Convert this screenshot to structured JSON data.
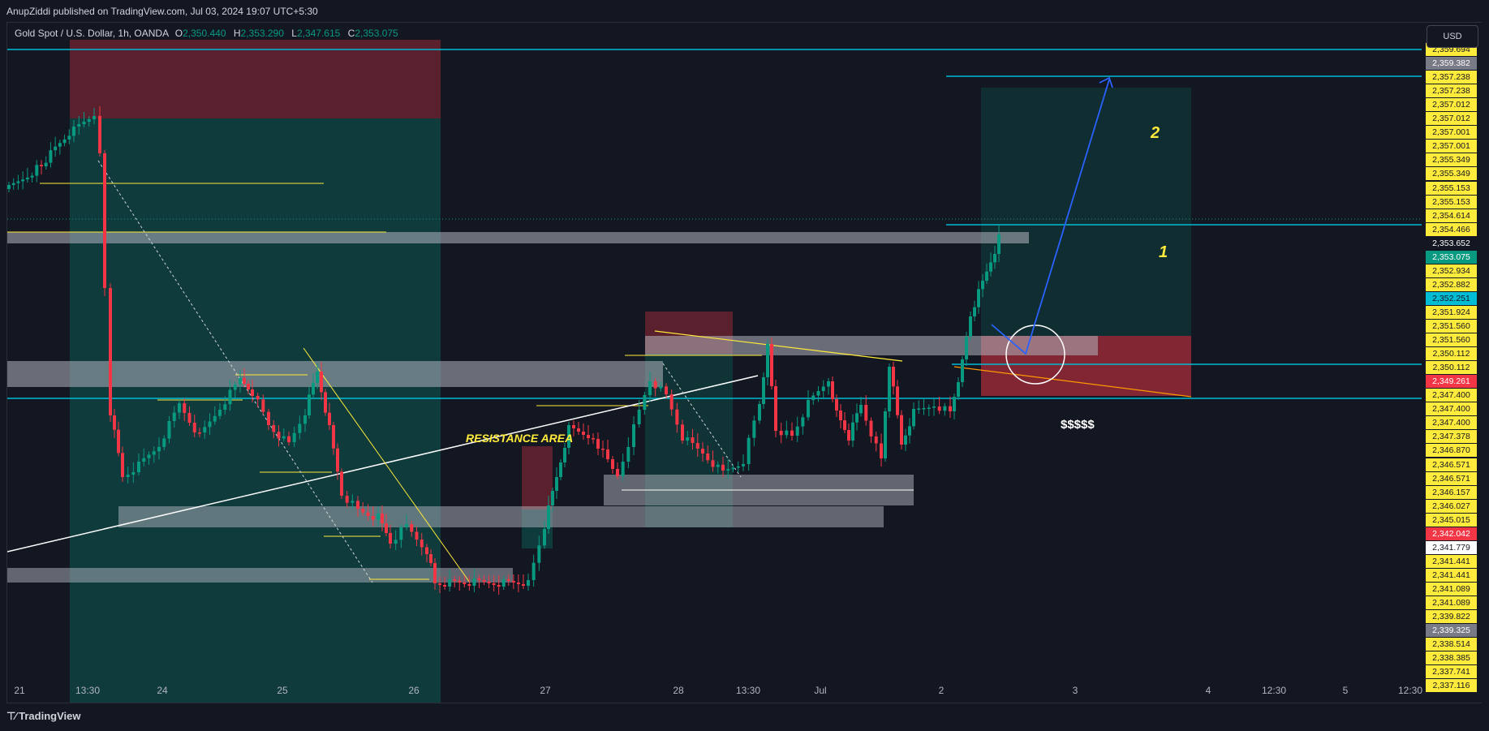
{
  "header": {
    "text": "AnupZiddi published on TradingView.com, Jul 03, 2024 19:07 UTC+5:30"
  },
  "legend": {
    "symbol": "Gold Spot / U.S. Dollar, 1h, OANDA",
    "o_label": "O",
    "o_value": "2,350.440",
    "h_label": "H",
    "h_value": "2,353.290",
    "l_label": "L",
    "l_value": "2,347.615",
    "c_label": "C",
    "c_value": "2,353.075"
  },
  "currency": "USD",
  "annotations": {
    "resistance": "RESISTANCE AREA",
    "liquidity": "$$$$$",
    "wave1": "1",
    "wave2": "2"
  },
  "footer": {
    "brand": "TradingView"
  },
  "time_axis": [
    {
      "label": "21"
    },
    {
      "label": "13:30"
    },
    {
      "label": "24"
    },
    {
      "label": "25"
    },
    {
      "label": "26"
    },
    {
      "label": "27"
    },
    {
      "label": "28"
    },
    {
      "label": "13:30"
    },
    {
      "label": "Jul"
    },
    {
      "label": "2"
    },
    {
      "label": "3"
    },
    {
      "label": "4"
    },
    {
      "label": "12:30"
    },
    {
      "label": "5"
    },
    {
      "label": "12:30"
    }
  ],
  "price_labels": [
    {
      "text": "2,359.694",
      "bg": "#ffeb3b",
      "fg": "#131722"
    },
    {
      "text": "2,359.382",
      "bg": "#787b86",
      "fg": "#ffffff"
    },
    {
      "text": "2,357.238",
      "bg": "#ffeb3b",
      "fg": "#131722"
    },
    {
      "text": "2,357.238",
      "bg": "#ffeb3b",
      "fg": "#131722"
    },
    {
      "text": "2,357.012",
      "bg": "#ffeb3b",
      "fg": "#131722"
    },
    {
      "text": "2,357.012",
      "bg": "#ffeb3b",
      "fg": "#131722"
    },
    {
      "text": "2,357.001",
      "bg": "#ffeb3b",
      "fg": "#131722"
    },
    {
      "text": "2,357.001",
      "bg": "#ffeb3b",
      "fg": "#131722"
    },
    {
      "text": "2,355.349",
      "bg": "#ffeb3b",
      "fg": "#131722"
    },
    {
      "text": "2,355.349",
      "bg": "#ffeb3b",
      "fg": "#131722"
    },
    {
      "text": "2,355.153",
      "bg": "#ffeb3b",
      "fg": "#131722"
    },
    {
      "text": "2,355.153",
      "bg": "#ffeb3b",
      "fg": "#131722"
    },
    {
      "text": "2,354.614",
      "bg": "#ffeb3b",
      "fg": "#131722"
    },
    {
      "text": "2,354.466",
      "bg": "#ffeb3b",
      "fg": "#131722"
    },
    {
      "text": "2,353.652",
      "bg": "#131722",
      "fg": "#ffffff"
    },
    {
      "text": "2,353.075",
      "bg": "#089981",
      "fg": "#ffffff"
    },
    {
      "text": "2,352.934",
      "bg": "#ffeb3b",
      "fg": "#131722"
    },
    {
      "text": "2,352.882",
      "bg": "#ffeb3b",
      "fg": "#131722"
    },
    {
      "text": "2,352.251",
      "bg": "#00bcd4",
      "fg": "#131722"
    },
    {
      "text": "2,351.924",
      "bg": "#ffeb3b",
      "fg": "#131722"
    },
    {
      "text": "2,351.560",
      "bg": "#ffeb3b",
      "fg": "#131722"
    },
    {
      "text": "2,351.560",
      "bg": "#ffeb3b",
      "fg": "#131722"
    },
    {
      "text": "2,350.112",
      "bg": "#ffeb3b",
      "fg": "#131722"
    },
    {
      "text": "2,350.112",
      "bg": "#ffeb3b",
      "fg": "#131722"
    },
    {
      "text": "2,349.261",
      "bg": "#f23645",
      "fg": "#ffffff"
    },
    {
      "text": "2,347.400",
      "bg": "#ffeb3b",
      "fg": "#131722"
    },
    {
      "text": "2,347.400",
      "bg": "#ffeb3b",
      "fg": "#131722"
    },
    {
      "text": "2,347.400",
      "bg": "#ffeb3b",
      "fg": "#131722"
    },
    {
      "text": "2,347.378",
      "bg": "#ffeb3b",
      "fg": "#131722"
    },
    {
      "text": "2,346.870",
      "bg": "#ffeb3b",
      "fg": "#131722"
    },
    {
      "text": "2,346.571",
      "bg": "#ffeb3b",
      "fg": "#131722"
    },
    {
      "text": "2,346.571",
      "bg": "#ffeb3b",
      "fg": "#131722"
    },
    {
      "text": "2,346.157",
      "bg": "#ffeb3b",
      "fg": "#131722"
    },
    {
      "text": "2,346.027",
      "bg": "#ffeb3b",
      "fg": "#131722"
    },
    {
      "text": "2,345.015",
      "bg": "#ffeb3b",
      "fg": "#131722"
    },
    {
      "text": "2,342.042",
      "bg": "#f23645",
      "fg": "#ffffff"
    },
    {
      "text": "2,341.779",
      "bg": "#ffffff",
      "fg": "#131722"
    },
    {
      "text": "2,341.441",
      "bg": "#ffeb3b",
      "fg": "#131722"
    },
    {
      "text": "2,341.441",
      "bg": "#ffeb3b",
      "fg": "#131722"
    },
    {
      "text": "2,341.089",
      "bg": "#ffeb3b",
      "fg": "#131722"
    },
    {
      "text": "2,341.089",
      "bg": "#ffeb3b",
      "fg": "#131722"
    },
    {
      "text": "2,339.822",
      "bg": "#ffeb3b",
      "fg": "#131722"
    },
    {
      "text": "2,339.325",
      "bg": "#787b86",
      "fg": "#ffffff"
    },
    {
      "text": "2,338.514",
      "bg": "#ffeb3b",
      "fg": "#131722"
    },
    {
      "text": "2,338.385",
      "bg": "#ffeb3b",
      "fg": "#131722"
    },
    {
      "text": "2,337.741",
      "bg": "#ffeb3b",
      "fg": "#131722"
    },
    {
      "text": "2,337.116",
      "bg": "#ffeb3b",
      "fg": "#131722"
    }
  ],
  "colors": {
    "background": "#131722",
    "bull": "#089981",
    "bear": "#f23645",
    "cyan_line": "#00bcd4",
    "yellow": "#ffeb3b",
    "zone_gray": "#787b86",
    "arrow_blue": "#2962ff"
  }
}
